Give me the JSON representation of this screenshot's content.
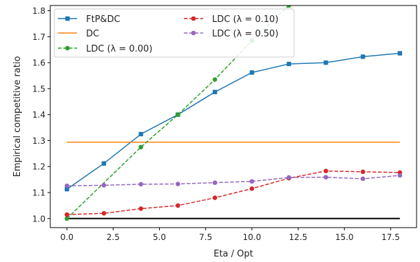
{
  "chart_data": {
    "type": "line",
    "xlabel": "Eta / Opt",
    "ylabel": "Empirical competitive ratio",
    "xlim": [
      -0.9,
      18.9
    ],
    "ylim": [
      0.965,
      1.82
    ],
    "xticks": [
      0.0,
      2.5,
      5.0,
      7.5,
      10.0,
      12.5,
      15.0,
      17.5
    ],
    "xtick_labels": [
      "0.0",
      "2.5",
      "5.0",
      "7.5",
      "10.0",
      "12.5",
      "15.0",
      "17.5"
    ],
    "yticks": [
      1.0,
      1.1,
      1.2,
      1.3,
      1.4,
      1.5,
      1.6,
      1.7,
      1.8
    ],
    "ytick_labels": [
      "1.0",
      "1.1",
      "1.2",
      "1.3",
      "1.4",
      "1.5",
      "1.6",
      "1.7",
      "1.8"
    ],
    "legend_position": "top-left",
    "series": [
      {
        "name": "FtP&DC",
        "color": "#1f77b4",
        "dash": "solid",
        "marker": "square",
        "x": [
          0,
          2,
          4,
          6,
          8,
          10,
          12,
          14,
          16,
          18
        ],
        "values": [
          1.113,
          1.212,
          1.325,
          1.4,
          1.487,
          1.562,
          1.595,
          1.6,
          1.623,
          1.636
        ]
      },
      {
        "name": "DC",
        "color": "#ff7f0e",
        "dash": "solid",
        "marker": "none",
        "x": [
          0,
          18
        ],
        "values": [
          1.294,
          1.294
        ]
      },
      {
        "name": "LDC (λ = 0.00)",
        "color": "#2ca02c",
        "dash": "dashed",
        "marker": "circle",
        "x": [
          0,
          4,
          6,
          8,
          10,
          12
        ],
        "values": [
          1.0,
          1.275,
          1.4,
          1.535,
          1.685,
          1.82
        ]
      },
      {
        "name": "LDC (λ = 0.10)",
        "color": "#d62728",
        "dash": "dashed",
        "marker": "circle",
        "x": [
          0,
          2,
          4,
          6,
          8,
          10,
          12,
          14,
          16,
          18
        ],
        "values": [
          1.015,
          1.02,
          1.038,
          1.05,
          1.08,
          1.115,
          1.155,
          1.183,
          1.18,
          1.177
        ]
      },
      {
        "name": "LDC (λ = 0.50)",
        "color": "#9467bd",
        "dash": "dashed",
        "marker": "circle",
        "x": [
          0,
          2,
          4,
          6,
          8,
          10,
          12,
          14,
          16,
          18
        ],
        "values": [
          1.126,
          1.128,
          1.132,
          1.133,
          1.138,
          1.143,
          1.158,
          1.159,
          1.153,
          1.166
        ]
      }
    ],
    "reference_line": {
      "color": "#000000",
      "x": [
        0,
        18
      ],
      "values": [
        1.0,
        1.0
      ]
    }
  }
}
